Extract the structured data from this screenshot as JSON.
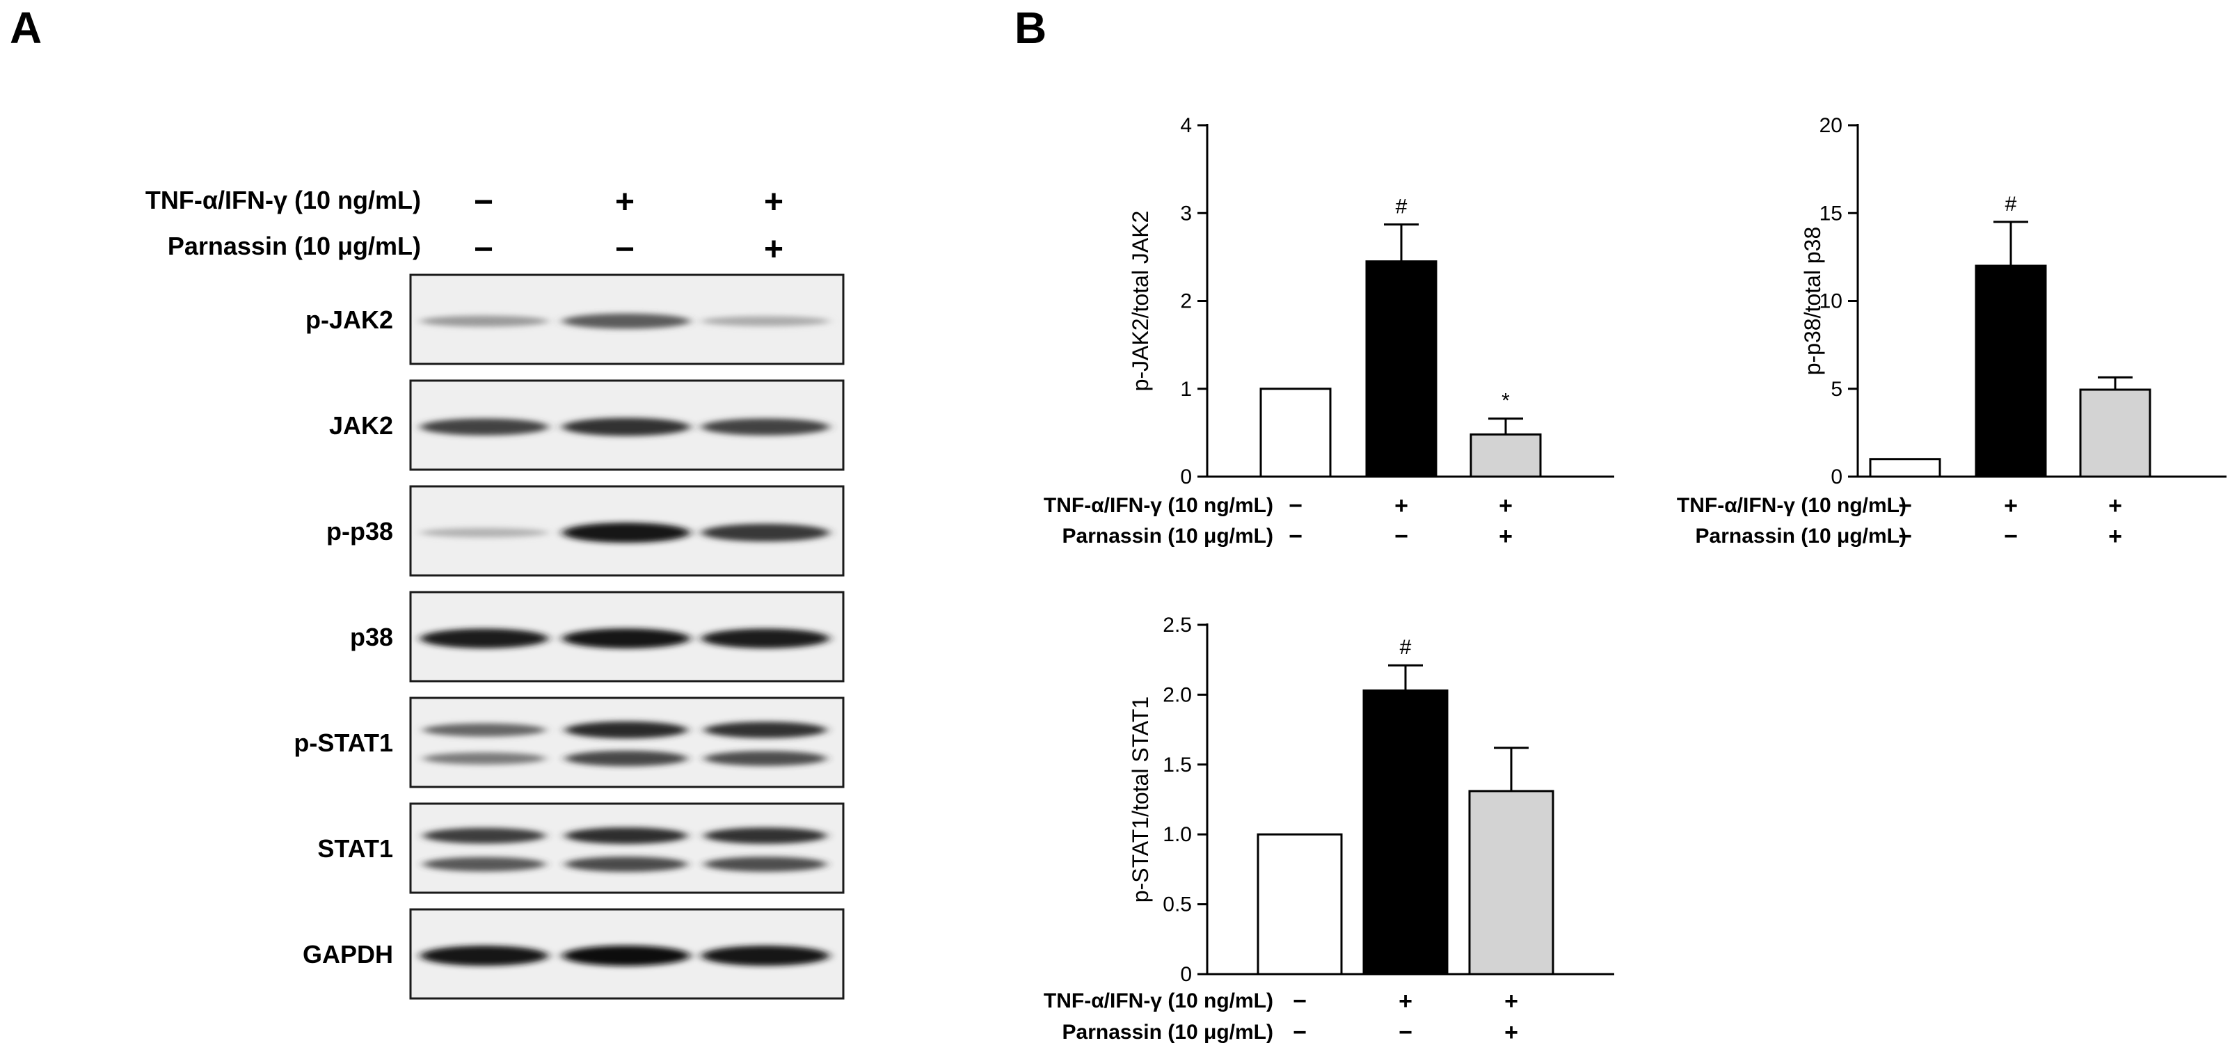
{
  "figure": {
    "panel_a_letter": "A",
    "panel_b_letter": "B"
  },
  "blot": {
    "treatments": [
      {
        "label": "TNF-α/IFN-γ (10 ng/mL)",
        "signs": [
          "−",
          "+",
          "+"
        ]
      },
      {
        "label": "Parnassin (10 μg/mL)",
        "signs": [
          "−",
          "−",
          "+"
        ]
      }
    ],
    "bands": [
      {
        "label": "p-JAK2",
        "intensity": [
          0.3,
          0.6,
          0.22
        ],
        "doublet": false
      },
      {
        "label": "JAK2",
        "intensity": [
          0.72,
          0.8,
          0.72
        ],
        "doublet": false
      },
      {
        "label": "p-p38",
        "intensity": [
          0.18,
          0.95,
          0.78
        ],
        "doublet": false
      },
      {
        "label": "p38",
        "intensity": [
          0.92,
          0.94,
          0.92
        ],
        "doublet": false
      },
      {
        "label": "p-STAT1",
        "intensity": [
          0.55,
          0.85,
          0.8
        ],
        "doublet": true
      },
      {
        "label": "STAT1",
        "intensity": [
          0.75,
          0.82,
          0.8
        ],
        "doublet": true
      },
      {
        "label": "GAPDH",
        "intensity": [
          0.95,
          0.97,
          0.95
        ],
        "doublet": false
      }
    ]
  },
  "chart_data": [
    {
      "type": "bar",
      "ylabel": "p-JAK2/total JAK2",
      "ylim": [
        0,
        4
      ],
      "yticks": [
        "0",
        "1",
        "2",
        "3",
        "4"
      ],
      "values": [
        1.0,
        2.45,
        0.48
      ],
      "errors": [
        0,
        0.42,
        0.18
      ],
      "significance": [
        "",
        "#",
        "*"
      ],
      "bar_colors": [
        "#ffffff",
        "#000000",
        "#d3d3d3"
      ],
      "treatments": [
        {
          "label": "TNF-α/IFN-γ (10 ng/mL)",
          "signs": [
            "−",
            "+",
            "+"
          ]
        },
        {
          "label": "Parnassin (10 μg/mL)",
          "signs": [
            "−",
            "−",
            "+"
          ]
        }
      ]
    },
    {
      "type": "bar",
      "ylabel": "p-p38/total p38",
      "ylim": [
        0,
        20
      ],
      "yticks": [
        "0",
        "5",
        "10",
        "15",
        "20"
      ],
      "values": [
        1.0,
        12.0,
        4.95
      ],
      "errors": [
        0,
        2.5,
        0.7
      ],
      "significance": [
        "",
        "#",
        ""
      ],
      "bar_colors": [
        "#ffffff",
        "#000000",
        "#d3d3d3"
      ],
      "treatments": [
        {
          "label": "TNF-α/IFN-γ (10 ng/mL)",
          "signs": [
            "−",
            "+",
            "+"
          ]
        },
        {
          "label": "Parnassin (10 μg/mL)",
          "signs": [
            "−",
            "−",
            "+"
          ]
        }
      ]
    },
    {
      "type": "bar",
      "ylabel": "p-STAT1/total STAT1",
      "ylim": [
        0,
        2.5
      ],
      "yticks": [
        "0",
        "0.5",
        "1.0",
        "1.5",
        "2.0",
        "2.5"
      ],
      "values": [
        1.0,
        2.03,
        1.31
      ],
      "errors": [
        0,
        0.18,
        0.31
      ],
      "significance": [
        "",
        "#",
        ""
      ],
      "bar_colors": [
        "#ffffff",
        "#000000",
        "#d3d3d3"
      ],
      "treatments": [
        {
          "label": "TNF-α/IFN-γ (10 ng/mL)",
          "signs": [
            "−",
            "+",
            "+"
          ]
        },
        {
          "label": "Parnassin (10 μg/mL)",
          "signs": [
            "−",
            "−",
            "+"
          ]
        }
      ]
    }
  ]
}
